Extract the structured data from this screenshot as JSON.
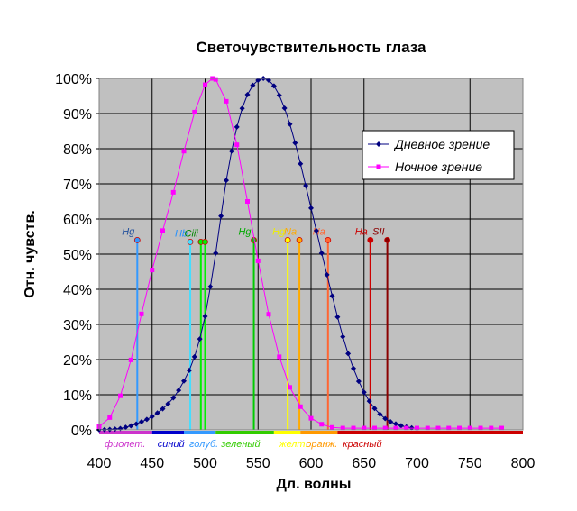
{
  "chart_data": {
    "type": "line",
    "title": "Светочувствительность глаза",
    "xlabel": "Дл. волны",
    "ylabel": "Отн. чувств.",
    "xlim": [
      400,
      800
    ],
    "ylim": [
      0,
      1
    ],
    "x_ticks": [
      400,
      450,
      500,
      550,
      600,
      650,
      700,
      750,
      800
    ],
    "y_ticks": [
      0,
      0.1,
      0.2,
      0.3,
      0.4,
      0.5,
      0.6,
      0.7,
      0.8,
      0.9,
      1.0
    ],
    "y_tick_labels": [
      "0%",
      "10%",
      "20%",
      "30%",
      "40%",
      "50%",
      "60%",
      "70%",
      "80%",
      "90%",
      "100%"
    ],
    "grid": true,
    "plot_background": "#c0c0c0",
    "legend_placement": "right",
    "series": [
      {
        "name": "Дневное зрение",
        "color": "#000080",
        "marker": "diamond",
        "x": [
          400,
          405,
          410,
          415,
          420,
          425,
          430,
          435,
          440,
          445,
          450,
          455,
          460,
          465,
          470,
          475,
          480,
          485,
          490,
          495,
          500,
          505,
          510,
          515,
          520,
          525,
          530,
          535,
          540,
          545,
          550,
          555,
          560,
          565,
          570,
          575,
          580,
          585,
          590,
          595,
          600,
          605,
          610,
          615,
          620,
          625,
          630,
          635,
          640,
          645,
          650,
          655,
          660,
          665,
          670,
          675,
          680,
          685,
          690,
          695,
          700
        ],
        "y": [
          0.0004,
          0.0006,
          0.0012,
          0.0022,
          0.004,
          0.0073,
          0.0116,
          0.0168,
          0.023,
          0.0298,
          0.038,
          0.048,
          0.06,
          0.0739,
          0.091,
          0.1126,
          0.139,
          0.1693,
          0.208,
          0.2586,
          0.323,
          0.4073,
          0.503,
          0.6082,
          0.71,
          0.7932,
          0.862,
          0.9149,
          0.954,
          0.9803,
          0.995,
          1.0,
          0.995,
          0.9786,
          0.952,
          0.9154,
          0.87,
          0.8163,
          0.757,
          0.6949,
          0.631,
          0.5668,
          0.503,
          0.4412,
          0.381,
          0.321,
          0.265,
          0.217,
          0.175,
          0.1382,
          0.107,
          0.0816,
          0.061,
          0.0446,
          0.032,
          0.0232,
          0.017,
          0.0119,
          0.0082,
          0.0057,
          0.0041
        ]
      },
      {
        "name": "Ночное зрение",
        "color": "#ff00ff",
        "marker": "square",
        "x": [
          400,
          410,
          420,
          430,
          440,
          450,
          460,
          470,
          480,
          490,
          500,
          507,
          510,
          520,
          530,
          540,
          550,
          560,
          570,
          580,
          590,
          600,
          610,
          620,
          630,
          640,
          650,
          660,
          670,
          680,
          690,
          700,
          710,
          720,
          730,
          740,
          750,
          760,
          770,
          780
        ],
        "y": [
          0.009,
          0.035,
          0.097,
          0.199,
          0.33,
          0.455,
          0.567,
          0.676,
          0.793,
          0.904,
          0.982,
          1.0,
          0.997,
          0.935,
          0.811,
          0.65,
          0.481,
          0.329,
          0.208,
          0.121,
          0.066,
          0.033,
          0.016,
          0.007,
          0.005,
          0.005,
          0.005,
          0.005,
          0.005,
          0.005,
          0.005,
          0.005,
          0.005,
          0.005,
          0.005,
          0.005,
          0.005,
          0.005,
          0.005,
          0.005
        ]
      }
    ],
    "spectral_lines": [
      {
        "label": "Hg",
        "x": 436,
        "height": 0.54,
        "color": "#3399ff",
        "label_color": "#1f4e9c"
      },
      {
        "label": "Hb",
        "x": 486,
        "height": 0.535,
        "color": "#44ddff",
        "label_color": "#1f8fff"
      },
      {
        "label": "Ciii",
        "x": 496,
        "height": 0.535,
        "color": "#00ee00",
        "label_color": "#008800"
      },
      {
        "label": "",
        "x": 500,
        "height": 0.535,
        "color": "#00ee00",
        "label_color": "#008800"
      },
      {
        "label": "Hg",
        "x": 546,
        "height": 0.54,
        "color": "#00cc00",
        "label_color": "#00aa00"
      },
      {
        "label": "Hg",
        "x": 578,
        "height": 0.54,
        "color": "#ffff00",
        "label_color": "#eeee00"
      },
      {
        "label": "Na",
        "x": 589,
        "height": 0.54,
        "color": "#ffaa00",
        "label_color": "#ffaa00"
      },
      {
        "label": "Na",
        "x": 616,
        "height": 0.54,
        "color": "#ff6633",
        "label_color": "#ff6633"
      },
      {
        "label": "Ha",
        "x": 656,
        "height": 0.54,
        "color": "#cc0000",
        "label_color": "#cc0000"
      },
      {
        "label": "SII",
        "x": 672,
        "height": 0.54,
        "color": "#8b0000",
        "label_color": "#8b0000"
      }
    ],
    "color_bands": [
      {
        "label": "фиолет.",
        "from": 400,
        "to": 450,
        "color": "#cc33cc"
      },
      {
        "label": "синий",
        "from": 450,
        "to": 480,
        "color": "#0000cc"
      },
      {
        "label": "голуб.",
        "from": 480,
        "to": 510,
        "color": "#3399ff"
      },
      {
        "label": "зеленый",
        "from": 510,
        "to": 565,
        "color": "#33cc00"
      },
      {
        "label": "желт.",
        "from": 565,
        "to": 590,
        "color": "#ffff00"
      },
      {
        "label": "оранж.",
        "from": 590,
        "to": 625,
        "color": "#ff9900"
      },
      {
        "label": "красный",
        "from": 625,
        "to": 800,
        "color": "#cc0000"
      }
    ]
  }
}
